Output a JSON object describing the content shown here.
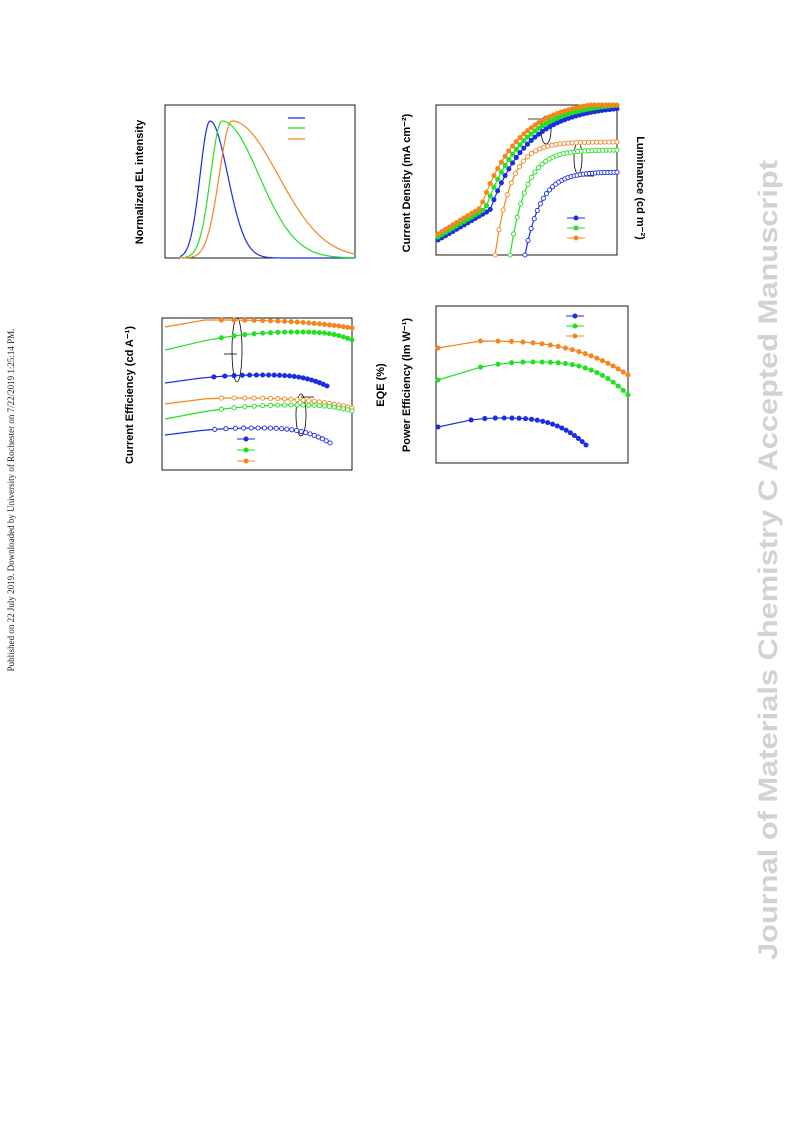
{
  "side_note": "Published on 22 July 2019. Downloaded by University of Rochester on 7/22/2019 1:25:14 PM.",
  "watermark": "Journal of Materials Chemistry C Accepted Manuscript",
  "figure": {
    "panels": [
      {
        "y_label": "Normalized EL intensity"
      },
      {
        "y_label": "Current Density (mA cm⁻²)",
        "y2_label": "Luminance (cd m⁻²)"
      },
      {
        "y_label": "Current Efficiency (cd A⁻¹)",
        "y2_label": "EQE (%)"
      },
      {
        "y_label": "Power Efficiency (lm W⁻¹)"
      }
    ]
  }
}
